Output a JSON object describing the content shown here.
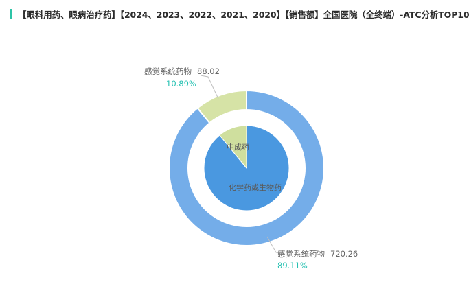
{
  "title": "【眼科用药、眼病治疗药】【2024、2023、2022、2021、2020】【销售额】全国医院（全终端）-ATC分析TOP10",
  "chart_data": {
    "type": "pie",
    "outer": {
      "slices": [
        {
          "name": "感觉系统药物",
          "value": 720.26,
          "percent": "89.11%",
          "color": "#74ade9"
        },
        {
          "name": "感觉系统药物",
          "value": 88.02,
          "percent": "10.89%",
          "color": "#d6e3a6"
        }
      ]
    },
    "inner": {
      "slices": [
        {
          "name": "化学药或生物药",
          "value": 720.26,
          "color": "#4a98e0"
        },
        {
          "name": "中成药",
          "value": 88.02,
          "color": "#cfdf9e"
        }
      ]
    },
    "colors": {
      "label_line": "#bdbdbd",
      "percent_text": "#26c1b2"
    }
  }
}
